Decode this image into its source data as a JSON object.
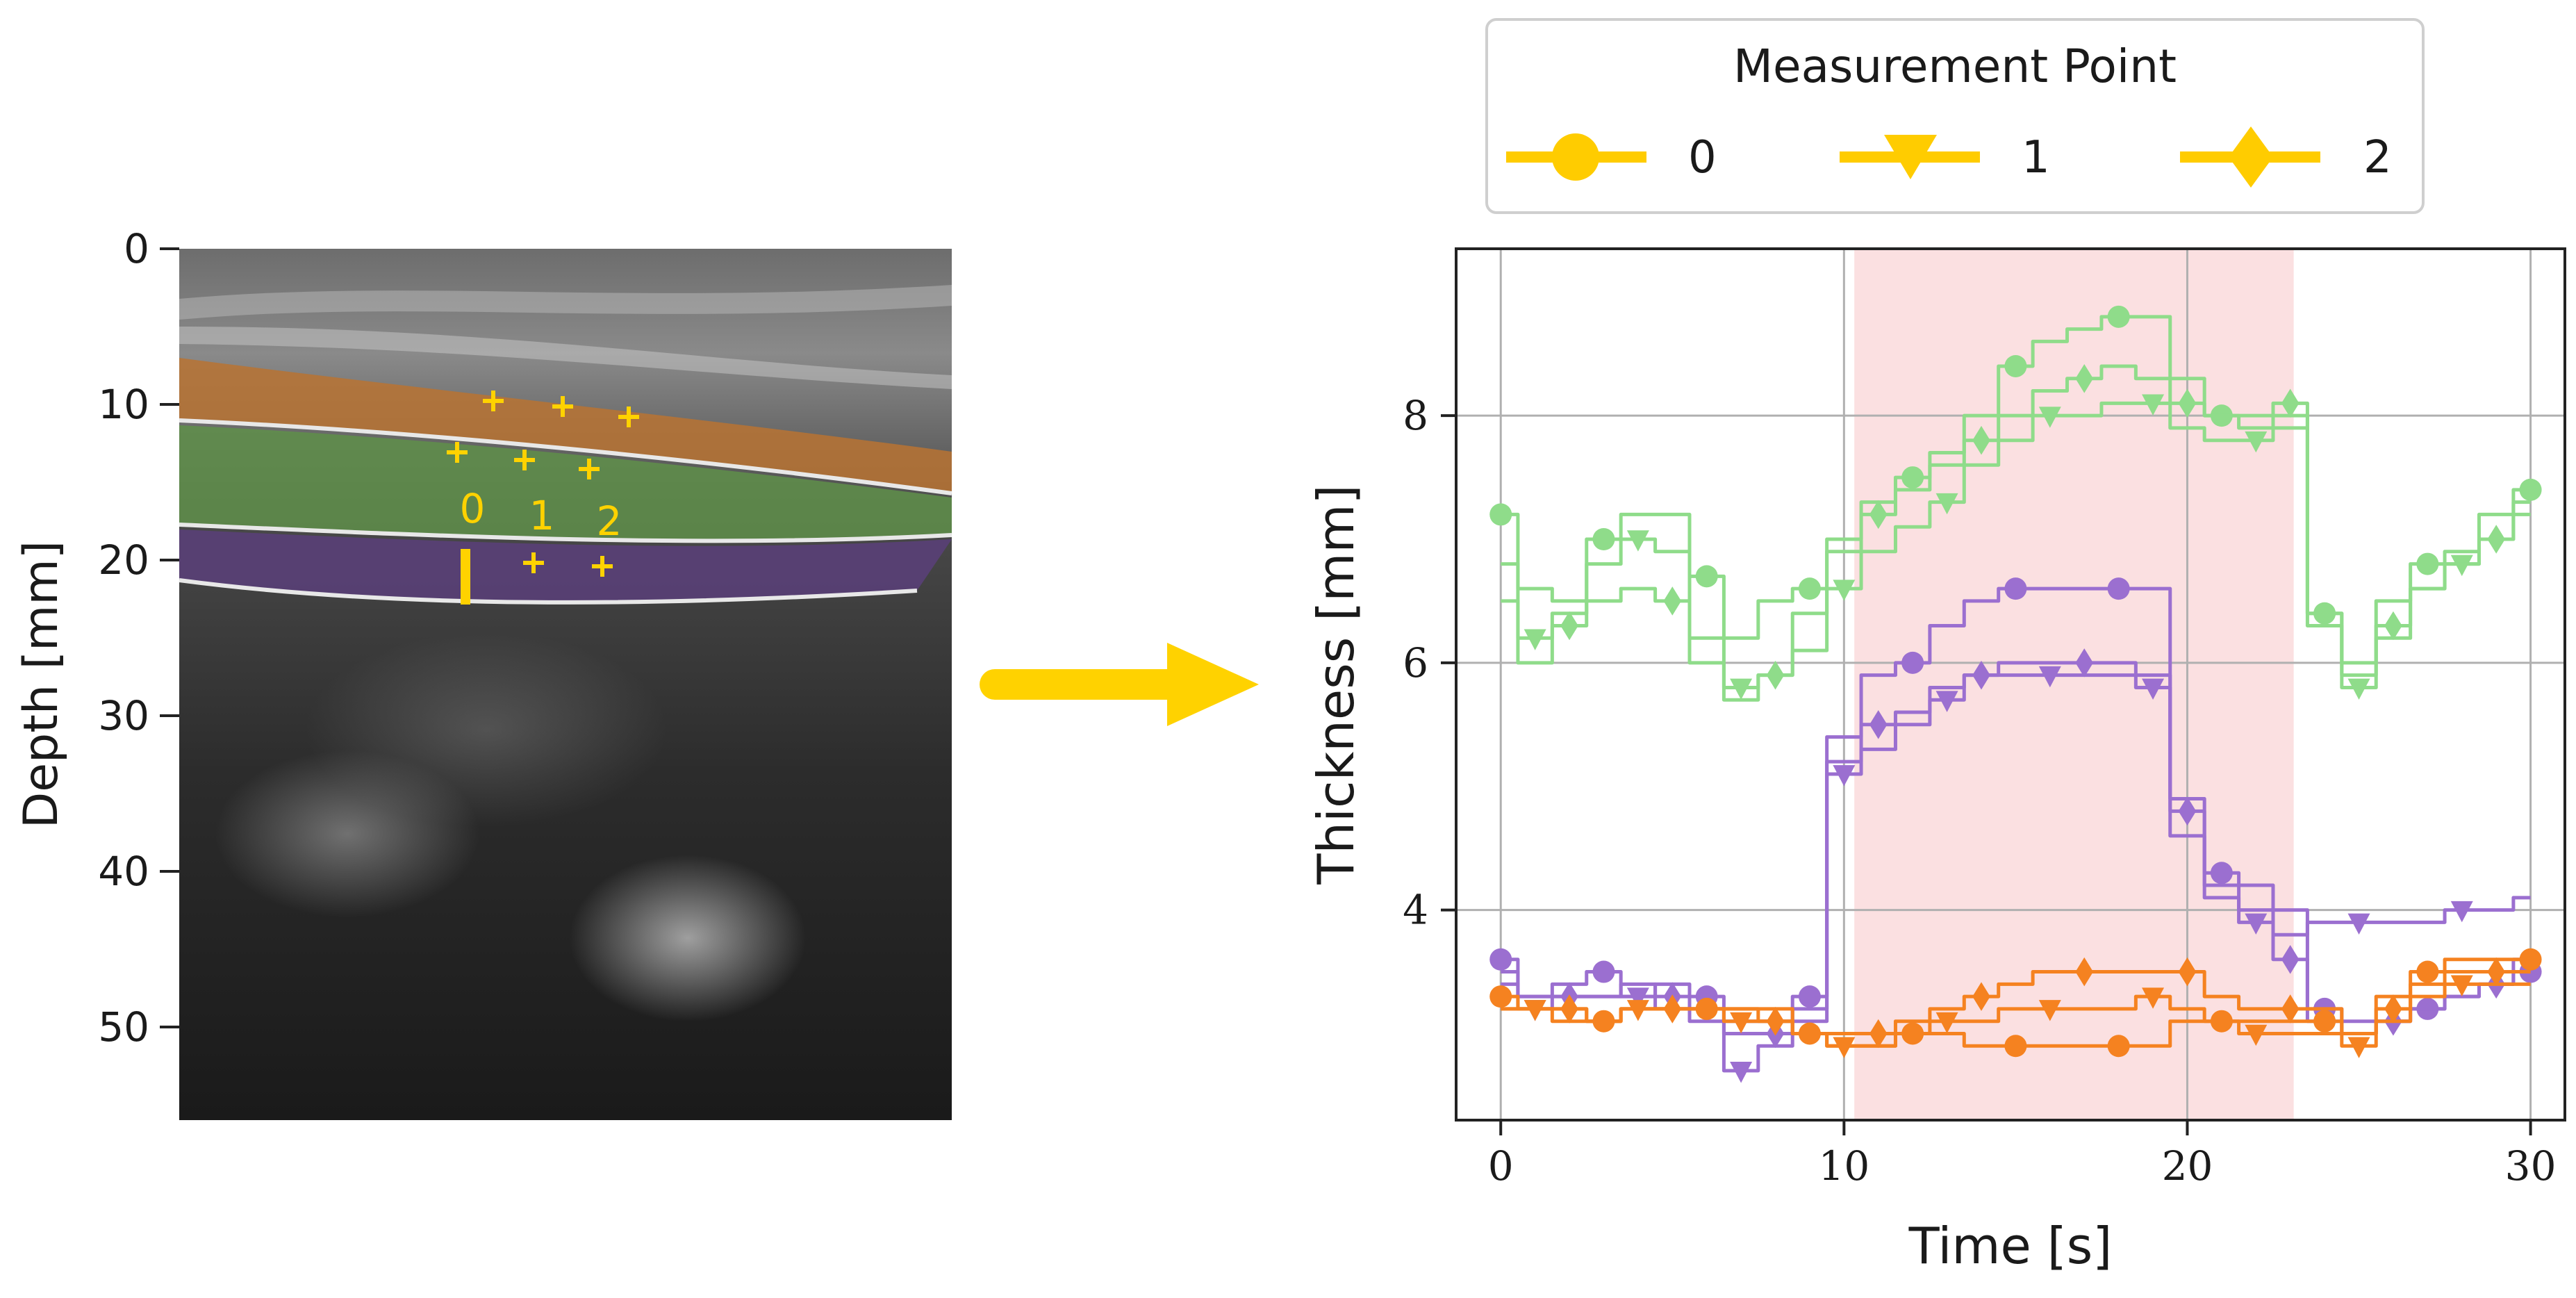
{
  "left_panel": {
    "ylabel": "Depth [mm]",
    "yticks": [
      "0",
      "10",
      "20",
      "30",
      "40",
      "50"
    ],
    "point_labels": [
      "0",
      "1",
      "2"
    ],
    "layer_colors": {
      "top": "#b87333",
      "middle": "#5f8f4a",
      "bottom": "#5b3f7a"
    }
  },
  "arrow": {
    "color": "#ffd200"
  },
  "legend": {
    "title": "Measurement Point",
    "entries": [
      {
        "label": "0",
        "marker": "circle"
      },
      {
        "label": "1",
        "marker": "triangle-down"
      },
      {
        "label": "2",
        "marker": "diamond"
      }
    ],
    "color": "#ffcc00"
  },
  "chart_data": {
    "type": "line",
    "xlabel": "Time [s]",
    "ylabel": "Thickness [mm]",
    "xlim": [
      -1.3,
      31
    ],
    "ylim": [
      2.3,
      9.35
    ],
    "xticks": [
      0,
      10,
      20,
      30
    ],
    "yticks": [
      4,
      6,
      8
    ],
    "grid": true,
    "highlight_span": [
      10.3,
      23.1
    ],
    "highlight_color": "#fbe0e1",
    "legend_position": "above",
    "series": [
      {
        "color": "#8fdc8a",
        "marker": "circle",
        "group": "green",
        "x": [
          0,
          1,
          2,
          3,
          4,
          5,
          6,
          7,
          8,
          9,
          10,
          11,
          12,
          13,
          14,
          15,
          16,
          17,
          18,
          19,
          20,
          21,
          22,
          23,
          24,
          25,
          26,
          27,
          28,
          29,
          30
        ],
        "y": [
          7.2,
          6.6,
          6.5,
          7.0,
          7.2,
          7.2,
          6.7,
          6.2,
          6.5,
          6.6,
          6.9,
          7.3,
          7.5,
          7.7,
          8.0,
          8.4,
          8.6,
          8.7,
          8.8,
          8.8,
          8.3,
          8.0,
          7.9,
          8.0,
          6.4,
          6.0,
          6.5,
          6.8,
          6.9,
          7.2,
          7.4
        ]
      },
      {
        "color": "#8fdc8a",
        "marker": "triangle-down",
        "group": "green",
        "x": [
          0,
          1,
          2,
          3,
          4,
          5,
          6,
          7,
          8,
          9,
          10,
          11,
          12,
          13,
          14,
          15,
          16,
          17,
          18,
          19,
          20,
          21,
          22,
          23,
          24,
          25,
          26,
          27,
          28,
          29,
          30
        ],
        "y": [
          6.5,
          6.2,
          6.4,
          6.8,
          7.0,
          6.9,
          6.2,
          5.8,
          5.9,
          6.1,
          6.6,
          6.9,
          7.1,
          7.3,
          7.6,
          7.8,
          8.0,
          8.0,
          8.1,
          8.1,
          7.9,
          7.8,
          7.8,
          7.9,
          6.3,
          5.8,
          6.2,
          6.6,
          6.8,
          7.0,
          7.2
        ]
      },
      {
        "color": "#8fdc8a",
        "marker": "diamond",
        "group": "green",
        "x": [
          0,
          1,
          2,
          3,
          4,
          5,
          6,
          7,
          8,
          9,
          10,
          11,
          12,
          13,
          14,
          15,
          16,
          17,
          18,
          19,
          20,
          21,
          22,
          23,
          24,
          25,
          26,
          27,
          28,
          29,
          30
        ],
        "y": [
          6.8,
          6.0,
          6.3,
          6.5,
          6.6,
          6.5,
          6.0,
          5.7,
          5.9,
          6.4,
          7.0,
          7.2,
          7.4,
          7.6,
          7.8,
          8.0,
          8.2,
          8.3,
          8.4,
          8.3,
          8.1,
          8.0,
          8.0,
          8.1,
          6.4,
          5.9,
          6.3,
          6.6,
          6.8,
          7.0,
          7.3
        ]
      },
      {
        "color": "#9b6fd0",
        "marker": "circle",
        "group": "purple",
        "x": [
          0,
          1,
          2,
          3,
          4,
          5,
          6,
          7,
          8,
          9,
          10,
          11,
          12,
          13,
          14,
          15,
          16,
          17,
          18,
          19,
          20,
          21,
          22,
          23,
          24,
          25,
          26,
          27,
          28,
          29,
          30
        ],
        "y": [
          3.6,
          3.3,
          3.4,
          3.5,
          3.3,
          3.4,
          3.3,
          3.1,
          3.1,
          3.3,
          5.4,
          5.9,
          6.0,
          6.3,
          6.5,
          6.6,
          6.6,
          6.6,
          6.6,
          6.6,
          4.9,
          4.3,
          4.2,
          4.0,
          3.2,
          3.1,
          3.1,
          3.2,
          3.3,
          3.4,
          3.5
        ]
      },
      {
        "color": "#9b6fd0",
        "marker": "triangle-down",
        "group": "purple",
        "x": [
          0,
          1,
          2,
          3,
          4,
          5,
          6,
          7,
          8,
          9,
          10,
          11,
          12,
          13,
          14,
          15,
          16,
          17,
          18,
          19,
          20,
          21,
          22,
          23,
          24,
          25,
          26,
          27,
          28,
          29,
          30
        ],
        "y": [
          3.4,
          3.2,
          3.3,
          3.3,
          3.3,
          3.2,
          3.1,
          2.7,
          2.9,
          3.2,
          5.1,
          5.3,
          5.5,
          5.7,
          5.9,
          5.9,
          5.9,
          5.9,
          5.9,
          5.8,
          4.6,
          4.1,
          3.9,
          3.8,
          3.9,
          3.9,
          3.9,
          3.9,
          4.0,
          4.0,
          4.1
        ]
      },
      {
        "color": "#9b6fd0",
        "marker": "diamond",
        "group": "purple",
        "x": [
          0,
          1,
          2,
          3,
          4,
          5,
          6,
          7,
          8,
          9,
          10,
          11,
          12,
          13,
          14,
          15,
          16,
          17,
          18,
          19,
          20,
          21,
          22,
          23,
          24,
          25,
          26,
          27,
          28,
          29,
          30
        ],
        "y": [
          3.5,
          3.3,
          3.3,
          3.3,
          3.4,
          3.3,
          3.2,
          3.0,
          3.0,
          3.1,
          5.2,
          5.5,
          5.6,
          5.8,
          5.9,
          6.0,
          6.0,
          6.0,
          6.0,
          5.9,
          4.8,
          4.2,
          4.0,
          3.6,
          3.1,
          3.0,
          3.1,
          3.2,
          3.3,
          3.4,
          3.6
        ]
      },
      {
        "color": "#f58220",
        "marker": "circle",
        "group": "orange",
        "x": [
          0,
          1,
          2,
          3,
          4,
          5,
          6,
          7,
          8,
          9,
          10,
          11,
          12,
          13,
          14,
          15,
          16,
          17,
          18,
          19,
          20,
          21,
          22,
          23,
          24,
          25,
          26,
          27,
          28,
          29,
          30
        ],
        "y": [
          3.3,
          3.2,
          3.1,
          3.1,
          3.2,
          3.2,
          3.2,
          3.2,
          3.2,
          3.0,
          2.9,
          2.9,
          3.0,
          3.0,
          2.9,
          2.9,
          2.9,
          2.9,
          2.9,
          2.9,
          3.1,
          3.1,
          3.1,
          3.1,
          3.1,
          3.0,
          3.3,
          3.5,
          3.6,
          3.6,
          3.6
        ]
      },
      {
        "color": "#f58220",
        "marker": "triangle-down",
        "group": "orange",
        "x": [
          0,
          1,
          2,
          3,
          4,
          5,
          6,
          7,
          8,
          9,
          10,
          11,
          12,
          13,
          14,
          15,
          16,
          17,
          18,
          19,
          20,
          21,
          22,
          23,
          24,
          25,
          26,
          27,
          28,
          29,
          30
        ],
        "y": [
          3.2,
          3.2,
          3.2,
          3.1,
          3.2,
          3.2,
          3.2,
          3.1,
          3.1,
          3.0,
          2.9,
          2.9,
          3.0,
          3.1,
          3.1,
          3.2,
          3.2,
          3.2,
          3.2,
          3.3,
          3.2,
          3.1,
          3.0,
          3.0,
          3.0,
          2.9,
          3.1,
          3.3,
          3.4,
          3.4,
          3.4
        ]
      },
      {
        "color": "#f58220",
        "marker": "diamond",
        "group": "orange",
        "x": [
          0,
          1,
          2,
          3,
          4,
          5,
          6,
          7,
          8,
          9,
          10,
          11,
          12,
          13,
          14,
          15,
          16,
          17,
          18,
          19,
          20,
          21,
          22,
          23,
          24,
          25,
          26,
          27,
          28,
          29,
          30
        ],
        "y": [
          3.2,
          3.2,
          3.2,
          3.1,
          3.2,
          3.2,
          3.2,
          3.2,
          3.1,
          3.0,
          3.0,
          3.0,
          3.1,
          3.2,
          3.3,
          3.4,
          3.5,
          3.5,
          3.5,
          3.5,
          3.5,
          3.3,
          3.2,
          3.2,
          3.2,
          3.0,
          3.2,
          3.4,
          3.5,
          3.5,
          3.5
        ]
      }
    ]
  }
}
